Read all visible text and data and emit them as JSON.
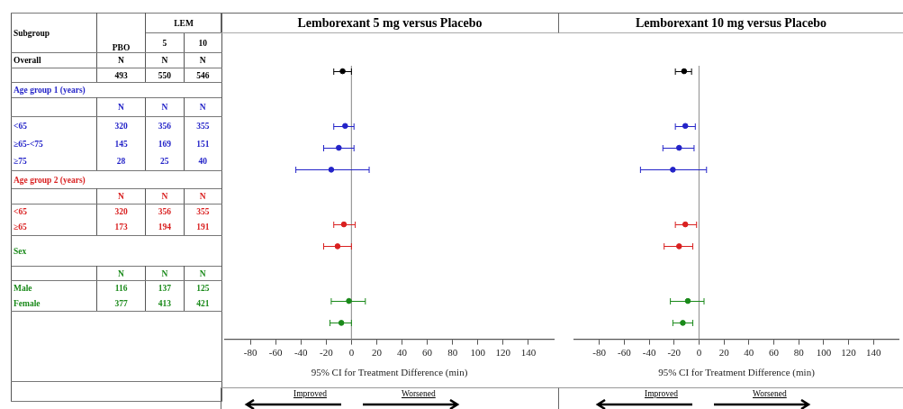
{
  "chart_data": [
    {
      "type": "other",
      "annotations": [
        "Subgroup",
        "PBO",
        "LEM",
        "5",
        "10",
        "Overall",
        "N",
        "N",
        "N",
        "493",
        "550",
        "546",
        "Age group 1 (years)",
        "N",
        "N",
        "N",
        "<65",
        "320",
        "356",
        "355",
        "≥65-<75",
        "145",
        "169",
        "151",
        "≥75",
        "28",
        "25",
        "40",
        "Age group 2 (years)",
        "N",
        "N",
        "N",
        "<65",
        "320",
        "356",
        "355",
        "≥65",
        "173",
        "194",
        "191",
        "Sex",
        "N",
        "N",
        "N",
        "Male",
        "116",
        "137",
        "125",
        "Female",
        "377",
        "413",
        "421"
      ]
    },
    {
      "type": "scatter",
      "orientation": "horizontal",
      "title": "Lemborexant 5 mg versus Placebo",
      "xlabel": "95% CI for Treatment Difference (min)",
      "xlim": [
        -100,
        160
      ],
      "xticks": [
        -80,
        -60,
        -40,
        -20,
        0,
        20,
        40,
        60,
        80,
        100,
        120,
        140
      ],
      "tick_labels": "x",
      "marker": "circle",
      "categories": [
        null,
        null,
        null,
        null,
        null,
        null,
        null,
        null,
        null,
        null,
        null,
        null,
        null,
        null,
        null,
        null,
        null,
        null,
        null,
        null,
        null,
        null,
        null,
        null,
        null
      ],
      "series": [
        {
          "color": "#000000",
          "values": [
            -7,
            null,
            null,
            null,
            null,
            null,
            null,
            null,
            null,
            null,
            null,
            null,
            null,
            null,
            null,
            null,
            null,
            null,
            null,
            null,
            null,
            null,
            null,
            null,
            null
          ],
          "errors": [
            [
              -14,
              0
            ],
            null,
            null,
            null,
            null,
            null,
            null,
            null,
            null,
            null,
            null,
            null,
            null,
            null,
            null,
            null,
            null,
            null,
            null,
            null,
            null,
            null,
            null,
            null,
            null
          ]
        },
        {
          "color": "#2323c8",
          "values": [
            null,
            null,
            null,
            null,
            null,
            -5,
            null,
            -10,
            null,
            -16,
            null,
            null,
            null,
            null,
            null,
            null,
            null,
            null,
            null,
            null,
            null,
            null,
            null,
            null,
            null
          ],
          "errors": [
            null,
            null,
            null,
            null,
            null,
            [
              -14,
              2
            ],
            null,
            [
              -22,
              2
            ],
            null,
            [
              -44,
              14
            ],
            null,
            null,
            null,
            null,
            null,
            null,
            null,
            null,
            null,
            null,
            null,
            null,
            null,
            null,
            null
          ]
        },
        {
          "color": "#d92020",
          "values": [
            null,
            null,
            null,
            null,
            null,
            null,
            null,
            null,
            null,
            null,
            null,
            null,
            null,
            null,
            -6,
            null,
            -11,
            null,
            null,
            null,
            null,
            null,
            null,
            null,
            null
          ],
          "errors": [
            null,
            null,
            null,
            null,
            null,
            null,
            null,
            null,
            null,
            null,
            null,
            null,
            null,
            null,
            [
              -14,
              3
            ],
            null,
            [
              -22,
              0
            ],
            null,
            null,
            null,
            null,
            null,
            null,
            null,
            null
          ]
        },
        {
          "color": "#1a8a1a",
          "values": [
            null,
            null,
            null,
            null,
            null,
            null,
            null,
            null,
            null,
            null,
            null,
            null,
            null,
            null,
            null,
            null,
            null,
            null,
            null,
            null,
            null,
            -2,
            null,
            -8,
            null
          ],
          "errors": [
            null,
            null,
            null,
            null,
            null,
            null,
            null,
            null,
            null,
            null,
            null,
            null,
            null,
            null,
            null,
            null,
            null,
            null,
            null,
            null,
            null,
            [
              -16,
              11
            ],
            null,
            [
              -17,
              0
            ],
            null
          ]
        }
      ],
      "ref_lines": [
        {
          "axis": "x",
          "value": 0,
          "color": "#9a9a9a"
        }
      ],
      "annotations": [
        "Improved",
        "Worsened"
      ]
    },
    {
      "type": "scatter",
      "orientation": "horizontal",
      "title": "Lemborexant 10 mg versus Placebo",
      "xlabel": "95% CI for Treatment Difference (min)",
      "xlim": [
        -100,
        160
      ],
      "xticks": [
        -80,
        -60,
        -40,
        -20,
        0,
        20,
        40,
        60,
        80,
        100,
        120,
        140
      ],
      "tick_labels": "x",
      "marker": "circle",
      "categories": [
        null,
        null,
        null,
        null,
        null,
        null,
        null,
        null,
        null,
        null,
        null,
        null,
        null,
        null,
        null,
        null,
        null,
        null,
        null,
        null,
        null,
        null,
        null,
        null,
        null
      ],
      "series": [
        {
          "color": "#000000",
          "values": [
            -12,
            null,
            null,
            null,
            null,
            null,
            null,
            null,
            null,
            null,
            null,
            null,
            null,
            null,
            null,
            null,
            null,
            null,
            null,
            null,
            null,
            null,
            null,
            null,
            null
          ],
          "errors": [
            [
              -19,
              -6
            ],
            null,
            null,
            null,
            null,
            null,
            null,
            null,
            null,
            null,
            null,
            null,
            null,
            null,
            null,
            null,
            null,
            null,
            null,
            null,
            null,
            null,
            null,
            null,
            null
          ]
        },
        {
          "color": "#2323c8",
          "values": [
            null,
            null,
            null,
            null,
            null,
            -11,
            null,
            -16,
            null,
            -21,
            null,
            null,
            null,
            null,
            null,
            null,
            null,
            null,
            null,
            null,
            null,
            null,
            null,
            null,
            null
          ],
          "errors": [
            null,
            null,
            null,
            null,
            null,
            [
              -19,
              -3
            ],
            null,
            [
              -29,
              -4
            ],
            null,
            [
              -47,
              6
            ],
            null,
            null,
            null,
            null,
            null,
            null,
            null,
            null,
            null,
            null,
            null,
            null,
            null,
            null,
            null
          ]
        },
        {
          "color": "#d92020",
          "values": [
            null,
            null,
            null,
            null,
            null,
            null,
            null,
            null,
            null,
            null,
            null,
            null,
            null,
            null,
            -11,
            null,
            -16,
            null,
            null,
            null,
            null,
            null,
            null,
            null,
            null
          ],
          "errors": [
            null,
            null,
            null,
            null,
            null,
            null,
            null,
            null,
            null,
            null,
            null,
            null,
            null,
            null,
            [
              -19,
              -2
            ],
            null,
            [
              -28,
              -5
            ],
            null,
            null,
            null,
            null,
            null,
            null,
            null,
            null
          ]
        },
        {
          "color": "#1a8a1a",
          "values": [
            null,
            null,
            null,
            null,
            null,
            null,
            null,
            null,
            null,
            null,
            null,
            null,
            null,
            null,
            null,
            null,
            null,
            null,
            null,
            null,
            null,
            -9,
            null,
            -13,
            null
          ],
          "errors": [
            null,
            null,
            null,
            null,
            null,
            null,
            null,
            null,
            null,
            null,
            null,
            null,
            null,
            null,
            null,
            null,
            null,
            null,
            null,
            null,
            null,
            [
              -23,
              4
            ],
            null,
            [
              -21,
              -5
            ],
            null
          ]
        }
      ],
      "ref_lines": [
        {
          "axis": "x",
          "value": 0,
          "color": "#9a9a9a"
        }
      ],
      "annotations": [
        "Improved",
        "Worsened"
      ]
    }
  ]
}
